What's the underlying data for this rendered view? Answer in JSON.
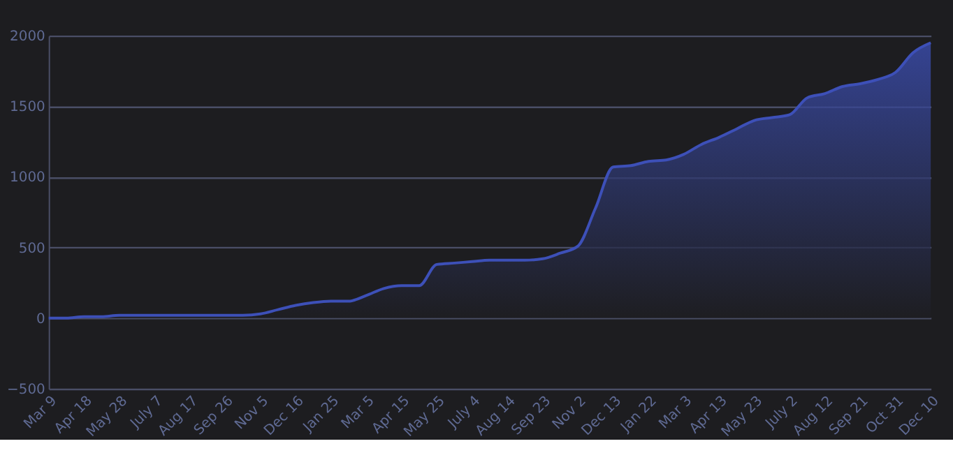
{
  "chart_data": {
    "type": "area",
    "categories": [
      "Mar 9",
      null,
      "Apr 18",
      null,
      "May 28",
      null,
      "July 7",
      null,
      "Aug 17",
      null,
      "Sep 26",
      null,
      "Nov 5",
      null,
      "Dec 16",
      null,
      "Jan 25",
      null,
      "Mar 5",
      null,
      "Apr 15",
      null,
      "May 25",
      null,
      "July 4",
      null,
      "Aug 14",
      null,
      "Sep 23",
      null,
      "Nov 2",
      null,
      "Dec 13",
      null,
      "Jan 22",
      null,
      "Mar 3",
      null,
      "Apr 13",
      null,
      "May 23",
      null,
      "July 2",
      null,
      "Aug 12",
      null,
      "Sep 21",
      null,
      "Oct 31",
      null,
      "Dec 10"
    ],
    "series": [
      {
        "color": "#3d50b8",
        "values": [
          0,
          0,
          10,
          10,
          20,
          20,
          20,
          20,
          20,
          20,
          20,
          20,
          30,
          60,
          90,
          110,
          120,
          120,
          160,
          210,
          230,
          230,
          380,
          390,
          400,
          410,
          410,
          410,
          420,
          460,
          510,
          780,
          1070,
          1080,
          1110,
          1120,
          1160,
          1230,
          1280,
          1340,
          1400,
          1420,
          1440,
          1560,
          1590,
          1640,
          1660,
          1690,
          1740,
          1880,
          1950
        ]
      }
    ],
    "ylim": [
      -500,
      2000
    ],
    "yticks": [
      -500,
      0,
      500,
      1000,
      1500,
      2000
    ],
    "grid": "y",
    "legend": false
  }
}
